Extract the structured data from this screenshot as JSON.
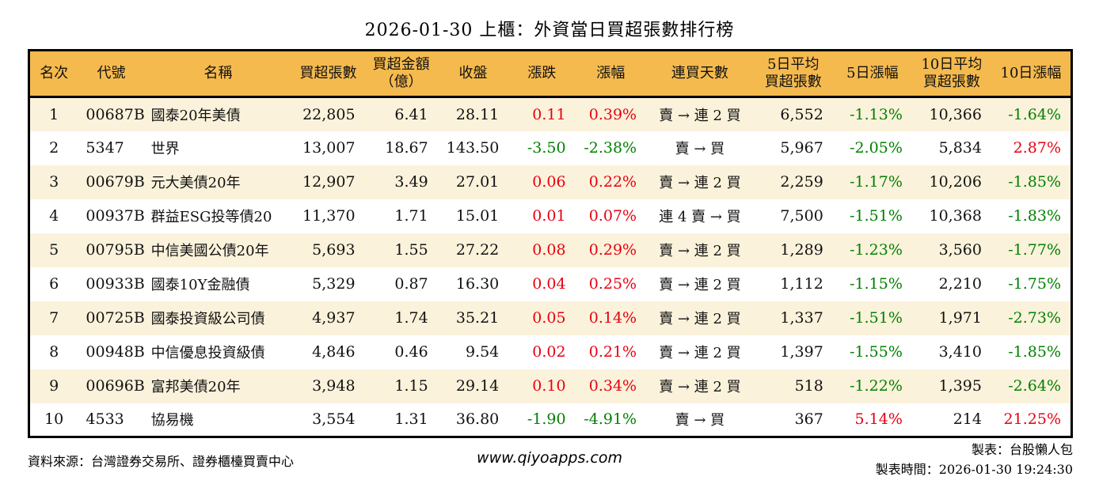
{
  "report": {
    "title": "2026-01-30 上櫃：外資當日買超張數排行榜"
  },
  "colors": {
    "up": "#e60012",
    "down": "#008000",
    "header_bg": "#f5ba4e",
    "stripe_bg": "#fbf2db",
    "border": "#000000"
  },
  "table": {
    "headers": [
      {
        "l1": "名次",
        "l2": ""
      },
      {
        "l1": "代號",
        "l2": ""
      },
      {
        "l1": "名稱",
        "l2": ""
      },
      {
        "l1": "買超張數",
        "l2": ""
      },
      {
        "l1": "買超金額",
        "l2": "（億）"
      },
      {
        "l1": "收盤",
        "l2": ""
      },
      {
        "l1": "漲跌",
        "l2": ""
      },
      {
        "l1": "漲幅",
        "l2": ""
      },
      {
        "l1": "連買天數",
        "l2": ""
      },
      {
        "l1": "5日平均",
        "l2": "買超張數"
      },
      {
        "l1": "5日漲幅",
        "l2": ""
      },
      {
        "l1": "10日平均",
        "l2": "買超張數"
      },
      {
        "l1": "10日漲幅",
        "l2": ""
      }
    ],
    "rows": [
      {
        "rank": "1",
        "code": "00687B",
        "name": "國泰20年美債",
        "vol": "22,805",
        "amount": "6.41",
        "close": "28.11",
        "chg": "0.11",
        "chg_pct": "0.39%",
        "streak": "賣 → 連 2 買",
        "avg5": "6,552",
        "pct5": "-1.13%",
        "avg10": "10,366",
        "pct10": "-1.64%"
      },
      {
        "rank": "2",
        "code": "5347",
        "name": "世界",
        "vol": "13,007",
        "amount": "18.67",
        "close": "143.50",
        "chg": "-3.50",
        "chg_pct": "-2.38%",
        "streak": "賣 → 買",
        "avg5": "5,967",
        "pct5": "-2.05%",
        "avg10": "5,834",
        "pct10": "2.87%"
      },
      {
        "rank": "3",
        "code": "00679B",
        "name": "元大美債20年",
        "vol": "12,907",
        "amount": "3.49",
        "close": "27.01",
        "chg": "0.06",
        "chg_pct": "0.22%",
        "streak": "賣 → 連 2 買",
        "avg5": "2,259",
        "pct5": "-1.17%",
        "avg10": "10,206",
        "pct10": "-1.85%"
      },
      {
        "rank": "4",
        "code": "00937B",
        "name": "群益ESG投等債20",
        "vol": "11,370",
        "amount": "1.71",
        "close": "15.01",
        "chg": "0.01",
        "chg_pct": "0.07%",
        "streak": "連 4 賣 → 買",
        "avg5": "7,500",
        "pct5": "-1.51%",
        "avg10": "10,368",
        "pct10": "-1.83%"
      },
      {
        "rank": "5",
        "code": "00795B",
        "name": "中信美國公債20年",
        "vol": "5,693",
        "amount": "1.55",
        "close": "27.22",
        "chg": "0.08",
        "chg_pct": "0.29%",
        "streak": "賣 → 連 2 買",
        "avg5": "1,289",
        "pct5": "-1.23%",
        "avg10": "3,560",
        "pct10": "-1.77%"
      },
      {
        "rank": "6",
        "code": "00933B",
        "name": "國泰10Y金融債",
        "vol": "5,329",
        "amount": "0.87",
        "close": "16.30",
        "chg": "0.04",
        "chg_pct": "0.25%",
        "streak": "賣 → 連 2 買",
        "avg5": "1,112",
        "pct5": "-1.15%",
        "avg10": "2,210",
        "pct10": "-1.75%"
      },
      {
        "rank": "7",
        "code": "00725B",
        "name": "國泰投資級公司債",
        "vol": "4,937",
        "amount": "1.74",
        "close": "35.21",
        "chg": "0.05",
        "chg_pct": "0.14%",
        "streak": "賣 → 連 2 買",
        "avg5": "1,337",
        "pct5": "-1.51%",
        "avg10": "1,971",
        "pct10": "-2.73%"
      },
      {
        "rank": "8",
        "code": "00948B",
        "name": "中信優息投資級債",
        "vol": "4,846",
        "amount": "0.46",
        "close": "9.54",
        "chg": "0.02",
        "chg_pct": "0.21%",
        "streak": "賣 → 連 2 買",
        "avg5": "1,397",
        "pct5": "-1.55%",
        "avg10": "3,410",
        "pct10": "-1.85%"
      },
      {
        "rank": "9",
        "code": "00696B",
        "name": "富邦美債20年",
        "vol": "3,948",
        "amount": "1.15",
        "close": "29.14",
        "chg": "0.10",
        "chg_pct": "0.34%",
        "streak": "賣 → 連 2 買",
        "avg5": "518",
        "pct5": "-1.22%",
        "avg10": "1,395",
        "pct10": "-2.64%"
      },
      {
        "rank": "10",
        "code": "4533",
        "name": "協易機",
        "vol": "3,554",
        "amount": "1.31",
        "close": "36.80",
        "chg": "-1.90",
        "chg_pct": "-4.91%",
        "streak": "賣 → 買",
        "avg5": "367",
        "pct5": "5.14%",
        "avg10": "214",
        "pct10": "21.25%"
      }
    ]
  },
  "footer": {
    "source": "資料來源：台灣證券交易所、證券櫃檯買賣中心",
    "website": "www.qiyoapps.com",
    "creator": "製表：台股懶人包",
    "created_at": "製表時間：2026-01-30 19:24:30"
  }
}
